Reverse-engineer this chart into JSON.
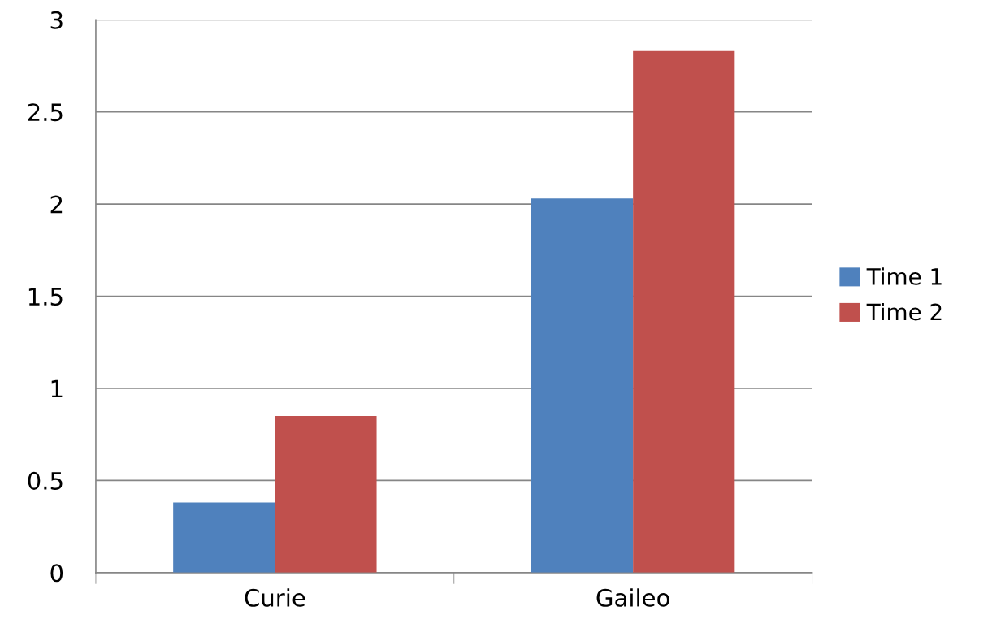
{
  "chart_data": {
    "type": "bar",
    "categories": [
      "Curie",
      "Gaileo"
    ],
    "series": [
      {
        "name": "Time 1",
        "color": "#4f81bd",
        "values": [
          0.38,
          2.03
        ]
      },
      {
        "name": "Time 2",
        "color": "#c0504d",
        "values": [
          0.85,
          2.83
        ]
      }
    ],
    "ylim": [
      0,
      3
    ],
    "yticks": [
      0,
      {
        "value": 0.5,
        "label": "0.5"
      },
      1,
      {
        "value": 1.5,
        "label": "1.5"
      },
      2,
      {
        "value": 2.5,
        "label": "2.5"
      },
      3
    ],
    "grid": "y",
    "legend": "right"
  }
}
